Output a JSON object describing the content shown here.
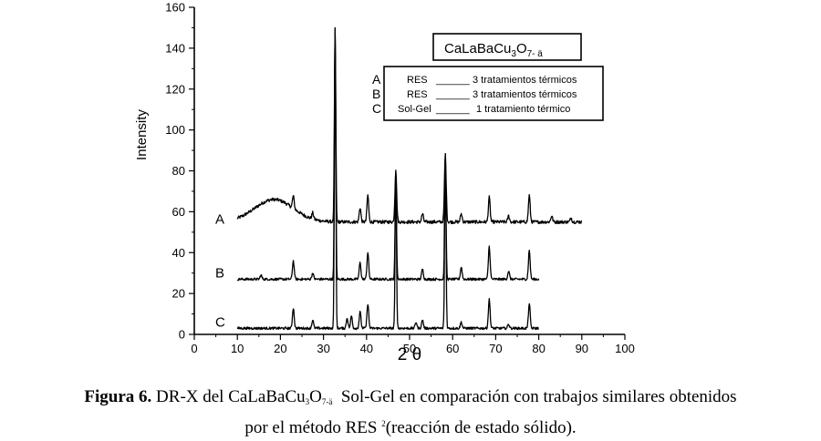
{
  "chart_data": {
    "type": "line",
    "xlabel": "2 θ",
    "ylabel": "Intensity",
    "xlim": [
      0,
      100
    ],
    "ylim": [
      0,
      160
    ],
    "x_ticks": [
      0,
      10,
      20,
      30,
      40,
      50,
      60,
      70,
      80,
      90,
      100
    ],
    "y_ticks": [
      0,
      20,
      40,
      60,
      80,
      100,
      120,
      140,
      160
    ],
    "grid": false,
    "legend_position": "top-right",
    "legend_title": {
      "base": "CaLaBaCu",
      "sub1": "3",
      "mid": "O",
      "sub2": "7- ä"
    },
    "series": [
      {
        "name": "A",
        "baseline": 55,
        "x_range": [
          10,
          90
        ],
        "hump": {
          "center": 18.5,
          "height": 11,
          "width": 4.5
        },
        "peaks": [
          [
            23.0,
            61
          ],
          [
            27.5,
            58
          ],
          [
            32.7,
            150
          ],
          [
            38.5,
            62
          ],
          [
            40.3,
            68
          ],
          [
            46.8,
            80
          ],
          [
            53.0,
            59
          ],
          [
            58.3,
            88
          ],
          [
            62.0,
            59
          ],
          [
            68.5,
            67
          ],
          [
            73.0,
            58
          ],
          [
            77.8,
            68
          ],
          [
            83.0,
            58
          ],
          [
            87.5,
            57
          ]
        ]
      },
      {
        "name": "B",
        "baseline": 27,
        "x_range": [
          10,
          80
        ],
        "peaks": [
          [
            15.5,
            29
          ],
          [
            23.0,
            36
          ],
          [
            27.5,
            30
          ],
          [
            32.7,
            150
          ],
          [
            38.5,
            35
          ],
          [
            40.3,
            40
          ],
          [
            46.8,
            80
          ],
          [
            53.0,
            32
          ],
          [
            58.3,
            88
          ],
          [
            62.0,
            33
          ],
          [
            68.5,
            43
          ],
          [
            73.0,
            31
          ],
          [
            77.8,
            41
          ]
        ]
      },
      {
        "name": "C",
        "baseline": 3,
        "x_range": [
          10,
          80
        ],
        "peaks": [
          [
            23.0,
            13
          ],
          [
            27.5,
            7
          ],
          [
            32.7,
            150
          ],
          [
            35.5,
            8
          ],
          [
            36.5,
            9
          ],
          [
            38.5,
            11
          ],
          [
            40.3,
            15
          ],
          [
            46.8,
            80
          ],
          [
            51.5,
            6
          ],
          [
            53.0,
            7
          ],
          [
            58.3,
            88
          ],
          [
            62.0,
            6
          ],
          [
            68.5,
            17
          ],
          [
            73.0,
            5
          ],
          [
            77.8,
            15
          ]
        ]
      }
    ],
    "legend_entries": [
      {
        "letter": "A",
        "method": "RES",
        "line": "______",
        "treatment": "3 tratamientos térmicos"
      },
      {
        "letter": "B",
        "method": "RES",
        "line": "______",
        "treatment": "3 tratamientos térmicos"
      },
      {
        "letter": "C",
        "method": "Sol-Gel",
        "line": "______",
        "treatment": "1 tratamiento térmico"
      }
    ]
  },
  "caption": {
    "bold": "Figura 6.",
    "part1": " DR-X del CaLaBaCu",
    "sub1": "3",
    "part2": "O",
    "sub2": "7-ä",
    "part3": "  Sol-Gel en comparación con trabajos similares obtenidos",
    "line2a": "por el método RES ",
    "sup": "2",
    "line2b": "(reacción de estado sólido)."
  }
}
